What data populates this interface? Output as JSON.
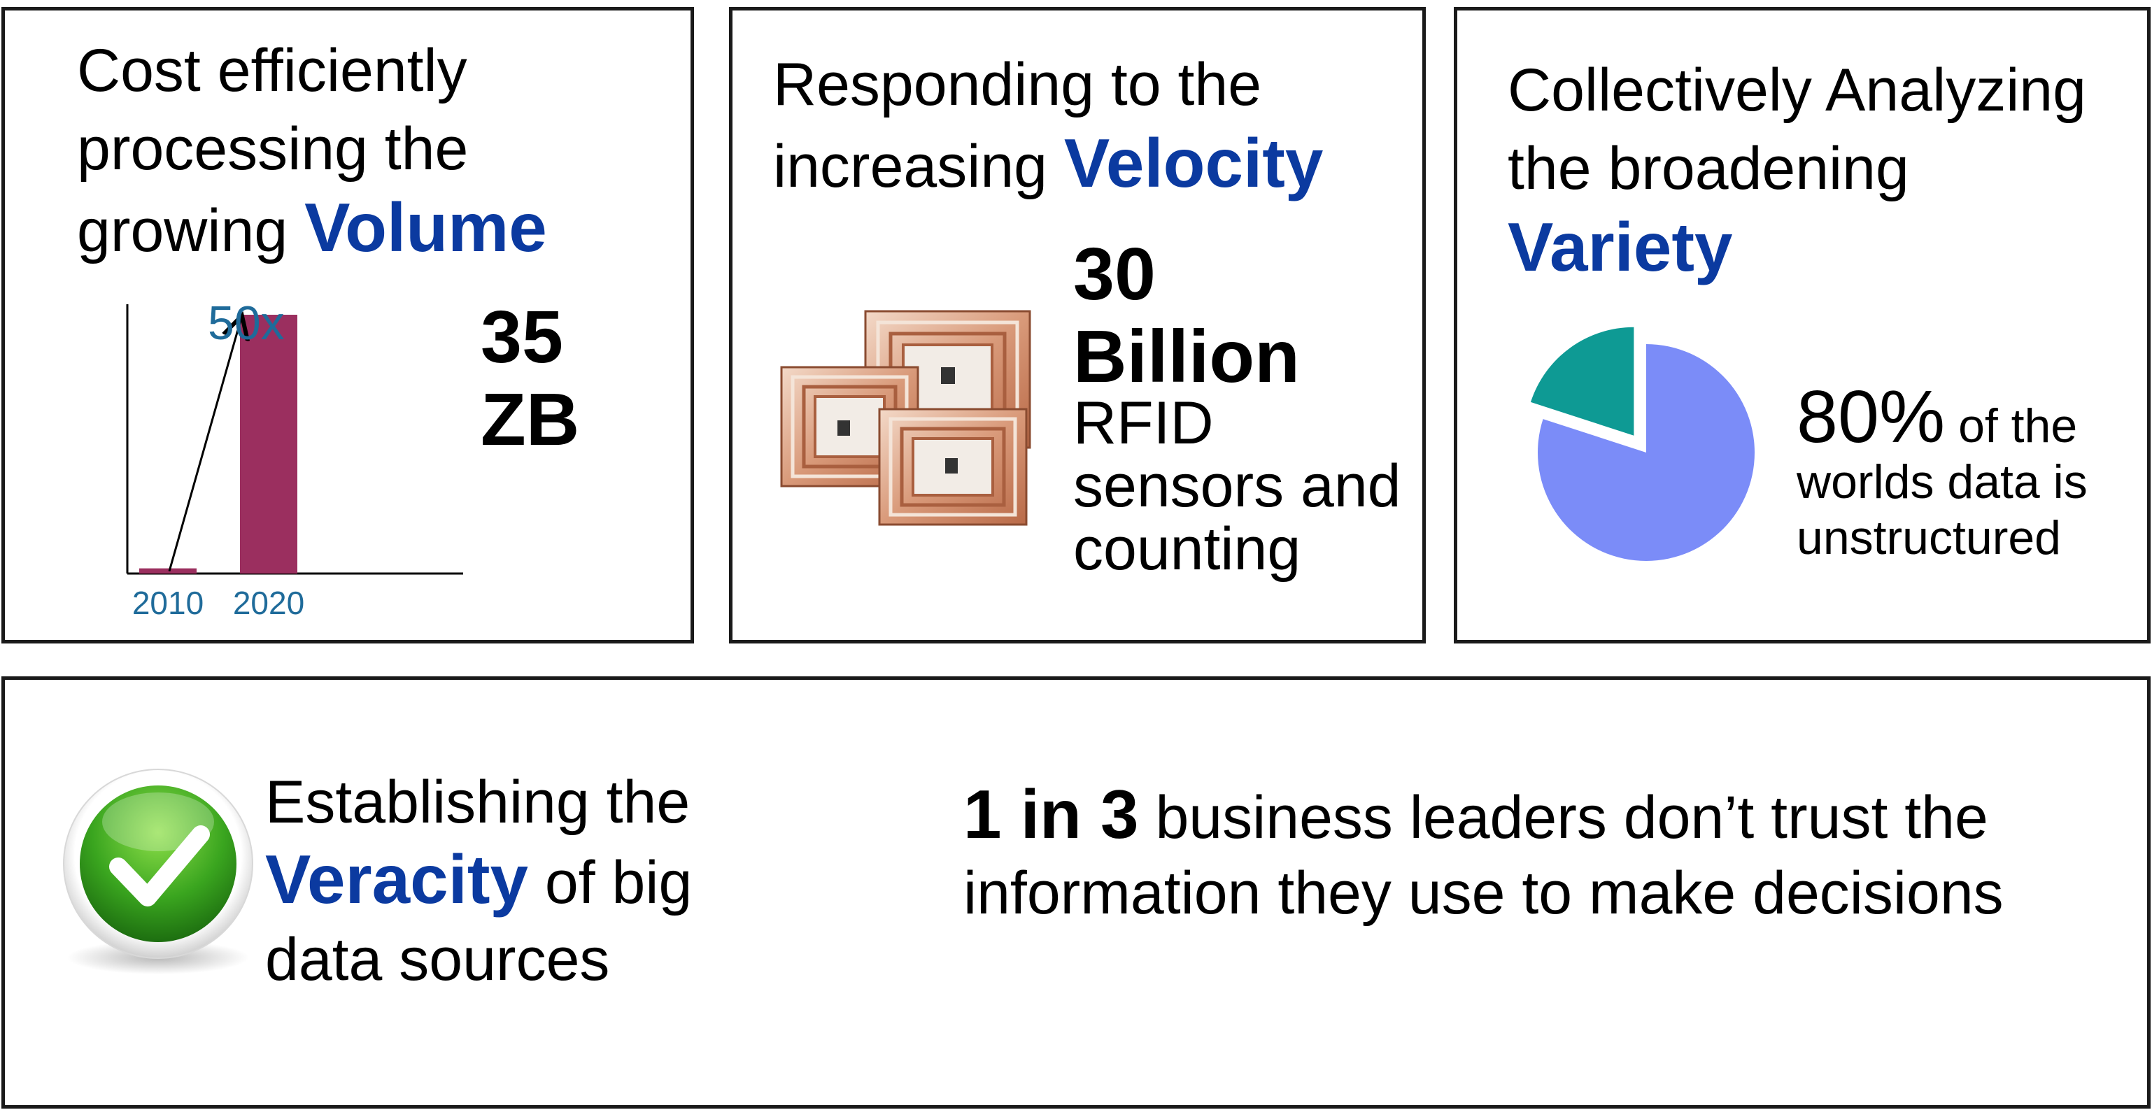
{
  "volume": {
    "heading_pre": "Cost efficiently processing the growing",
    "keyword": "Volume",
    "stat_line1": "35",
    "stat_line2": "ZB",
    "chart_data": {
      "type": "bar",
      "categories": [
        "2010",
        "2020"
      ],
      "values": [
        1,
        50
      ],
      "annotation": "50x"
    },
    "colors": {
      "bar": "#9b2f5f",
      "label": "#1f6b9a"
    }
  },
  "velocity": {
    "heading_pre": "Responding to the increasing",
    "keyword": "Velocity",
    "stat_line1": "30",
    "stat_line2": "Billion",
    "desc": "RFID sensors and counting",
    "icon": "rfid-chip-icon"
  },
  "variety": {
    "heading_pre": "Collectively Analyzing the broadening",
    "keyword": "Variety",
    "stat_pct": "80%",
    "stat_rest": "of the worlds data is unstructured",
    "chart_data": {
      "type": "pie",
      "values": [
        80,
        20
      ],
      "exploded": [
        false,
        true
      ]
    },
    "colors": {
      "unstructured": "#7b8cf8",
      "structured": "#0e9a94"
    }
  },
  "veracity": {
    "heading_pre": "Establishing the",
    "keyword": "Veracity",
    "heading_post": "of big data sources",
    "stat_lead": "1 in 3",
    "stat_rest": "business leaders don’t trust the information they use to make decisions",
    "icon": "check-mark-icon"
  },
  "colors": {
    "keyword": "#0b3aa0"
  }
}
